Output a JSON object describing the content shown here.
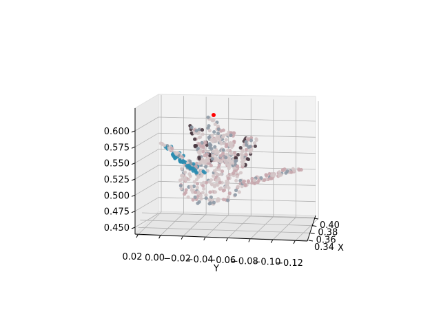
{
  "chart_data": {
    "type": "scatter",
    "projection": "3d",
    "title": "",
    "xlabel": "X",
    "ylabel": "Y",
    "zlabel": "",
    "x_ticks": [
      0.34,
      0.36,
      0.38,
      0.4
    ],
    "x_tick_labels": [
      "0.34",
      "0.36",
      "0.38",
      "0.40"
    ],
    "y_ticks": [
      0.02,
      0.0,
      -0.02,
      -0.04,
      -0.06,
      -0.08,
      -0.1,
      -0.12
    ],
    "y_tick_labels": [
      "0.02",
      "0.00",
      "−0.02",
      "−0.04",
      "−0.06",
      "−0.08",
      "−0.10",
      "−0.12"
    ],
    "z_ticks": [
      0.45,
      0.475,
      0.5,
      0.525,
      0.55,
      0.575,
      0.6
    ],
    "z_tick_labels": [
      "0.450",
      "0.475",
      "0.500",
      "0.525",
      "0.550",
      "0.575",
      "0.600"
    ],
    "grid": true,
    "legend": "none",
    "colors": {
      "point_main": "#d4c6c8",
      "point_pink": "#c9a8ae",
      "point_dark": "#4a3a42",
      "point_blue": "#2a8cb0",
      "point_gray": "#8e9aa6",
      "highlight": "#ff0000"
    }
  }
}
